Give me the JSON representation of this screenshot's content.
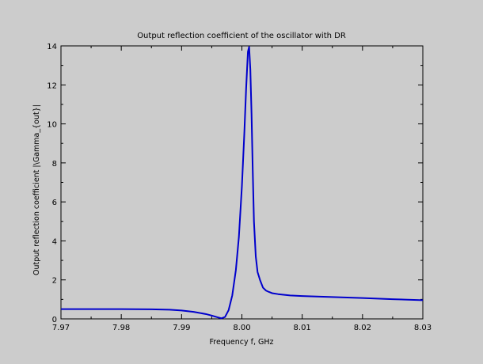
{
  "chart_data": {
    "type": "line",
    "title": "Output reflection coefficient of the oscillator with DR",
    "xlabel": "Frequency f, GHz",
    "ylabel": "Output reflection coefficient |\\Gamma_{out}|",
    "xlim": [
      7.97,
      8.03
    ],
    "ylim": [
      0,
      14
    ],
    "xticks": [
      "7.97",
      "7.98",
      "7.99",
      "8.00",
      "8.01",
      "8.02",
      "8.03"
    ],
    "yticks": [
      "0",
      "2",
      "4",
      "6",
      "8",
      "10",
      "12",
      "14"
    ],
    "grid": false,
    "line_color": "#0000cc",
    "series": [
      {
        "x": [
          7.97,
          7.975,
          7.98,
          7.985,
          7.988,
          7.99,
          7.992,
          7.994,
          7.995,
          7.996,
          7.9966,
          7.9972,
          7.9978,
          7.9984,
          7.999,
          7.9995,
          8.0,
          8.0004,
          8.0007,
          8.001,
          8.0012,
          8.0014,
          8.0016,
          8.0018,
          8.002,
          8.0023,
          8.0026,
          8.003,
          8.0035,
          8.004,
          8.0045,
          8.005,
          8.006,
          8.008,
          8.01,
          8.015,
          8.02,
          8.025,
          8.03
        ],
        "y": [
          0.5,
          0.5,
          0.5,
          0.49,
          0.47,
          0.43,
          0.36,
          0.25,
          0.17,
          0.08,
          0.03,
          0.1,
          0.45,
          1.2,
          2.5,
          4.2,
          6.8,
          9.5,
          11.8,
          13.7,
          13.95,
          12.8,
          10.5,
          7.6,
          5.0,
          3.2,
          2.4,
          2.0,
          1.6,
          1.45,
          1.38,
          1.32,
          1.27,
          1.2,
          1.17,
          1.12,
          1.07,
          1.01,
          0.96
        ]
      }
    ]
  }
}
